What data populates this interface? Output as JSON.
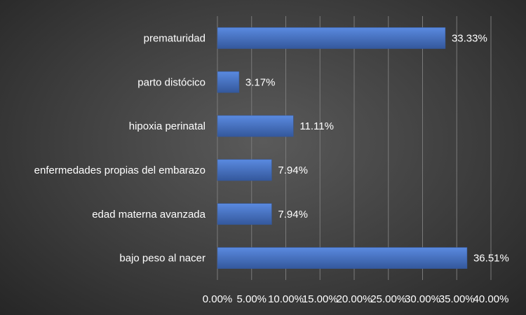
{
  "chart_data": {
    "type": "bar",
    "orientation": "horizontal",
    "categories": [
      "prematuridad",
      "parto distócico",
      "hipoxia perinatal",
      "enfermedades propias del embarazo",
      "edad materna avanzada",
      "bajo peso al nacer"
    ],
    "values": [
      33.33,
      3.17,
      11.11,
      7.94,
      7.94,
      36.51
    ],
    "data_labels": [
      "33.33%",
      "3.17%",
      "11.11%",
      "7.94%",
      "7.94%",
      "36.51%"
    ],
    "x_ticks": [
      "0.00%",
      "5.00%",
      "10.00%",
      "15.00%",
      "20.00%",
      "25.00%",
      "30.00%",
      "35.00%",
      "40.00%"
    ],
    "xlim": [
      0,
      40
    ],
    "title": "",
    "xlabel": "",
    "ylabel": "",
    "grid": true,
    "legend": "none",
    "colors": {
      "bar": "#4472c4",
      "bar_light": "#5a8ae0",
      "bar_dark": "#34589c",
      "text": "#ffffff",
      "grid": "#7a7a7a"
    }
  }
}
